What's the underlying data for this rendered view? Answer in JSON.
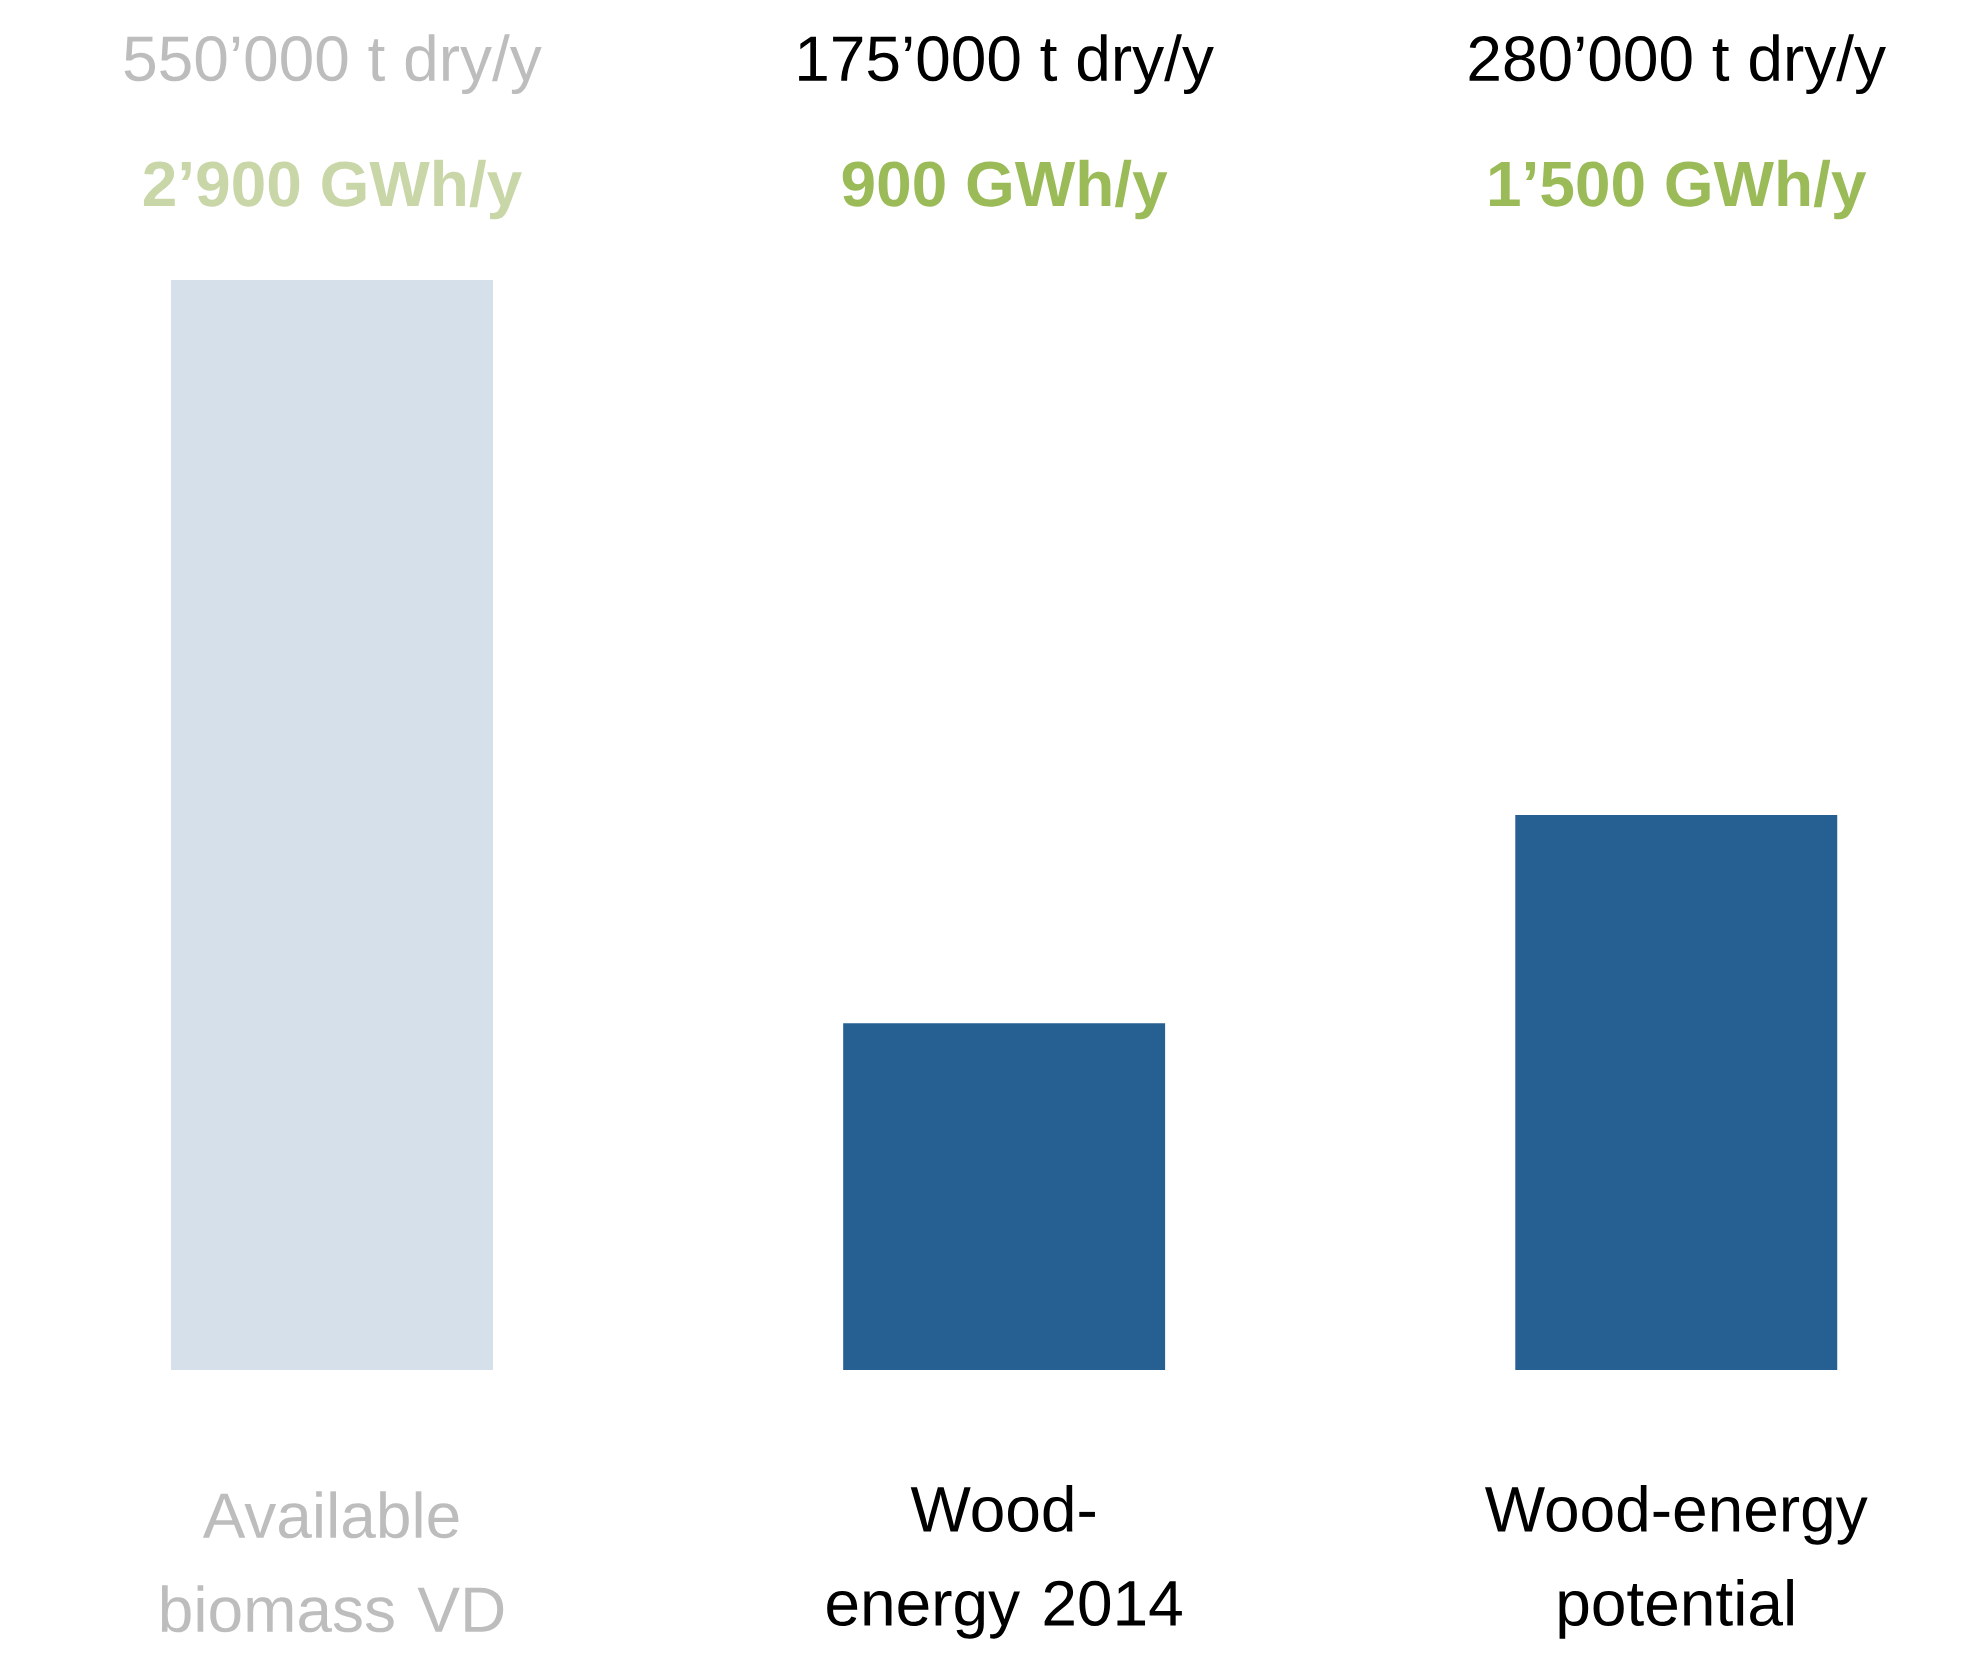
{
  "chart_data": {
    "type": "bar",
    "categories": [
      "Available biomass VD",
      "Wood-energy 2014",
      "Wood-energy potential"
    ],
    "values": [
      550000,
      175000,
      280000
    ],
    "colors": [
      "#d6e0ea",
      "#265f91",
      "#265f91"
    ],
    "value_labels": [
      "550’000 t dry/y",
      "175’000 t dry/y",
      "280’000 t dry/y"
    ],
    "annotations": [
      "2’900 GWh/y",
      "900 GWh/y",
      "1’500 GWh/y"
    ],
    "ylim": [
      0,
      550000
    ],
    "tick_labels": "x"
  }
}
